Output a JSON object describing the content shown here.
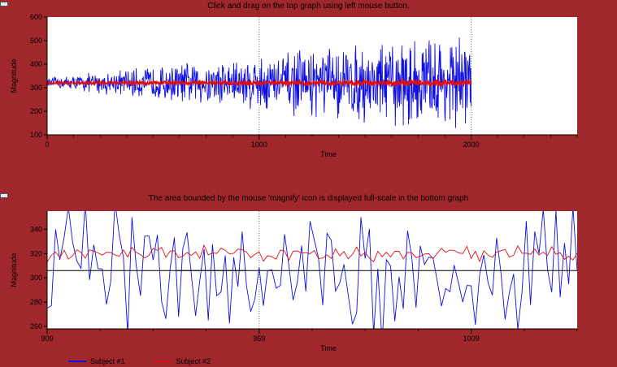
{
  "titles": {
    "top": "Click and drag on the top graph using left mouse button.",
    "bottom": "The area bounded by the mouse 'magnify' icon is displayed full-scale in the bottom graph"
  },
  "colors": {
    "background": "#a0272b",
    "subject1": "#1010e0",
    "subject2": "#e01010",
    "threshold": "#000000"
  },
  "legend": [
    {
      "name": "Subject #1",
      "color": "#1010e0"
    },
    {
      "name": "Subject #2",
      "color": "#e01010"
    }
  ],
  "chart_data": [
    {
      "type": "line",
      "xlabel": "Time",
      "ylabel": "Magnitude",
      "xlim": [
        0,
        2500
      ],
      "ylim": [
        100,
        600
      ],
      "xticks": [
        0,
        1000,
        2000
      ],
      "yticks": [
        100,
        200,
        300,
        400,
        500,
        600
      ],
      "series_range": [
        0,
        2000
      ],
      "series": [
        {
          "name": "Subject #1",
          "center": 320,
          "amplitude_start": 20,
          "amplitude_end": 200
        },
        {
          "name": "Subject #2",
          "center": 320,
          "amplitude_start": 5,
          "amplitude_end": 15
        }
      ],
      "guides_x": [
        1000,
        2000
      ],
      "threshold_y": 320,
      "legend": "bottom-left",
      "grid": false
    },
    {
      "type": "line",
      "xlabel": "Time",
      "ylabel": "Magnitude",
      "xlim": [
        909,
        1034
      ],
      "ylim": [
        258,
        355
      ],
      "xticks": [
        909,
        959,
        1009
      ],
      "yticks": [
        260,
        280,
        300,
        320,
        340
      ],
      "series": [
        {
          "name": "Subject #1",
          "center": 310,
          "amplitude": 55
        },
        {
          "name": "Subject #2",
          "center": 320,
          "amplitude": 6
        }
      ],
      "threshold_y": 306,
      "threshold_segments": [
        [
          909,
          956
        ],
        [
          939.5,
          1034
        ]
      ],
      "guides_x": [
        959
      ],
      "grid": false
    }
  ]
}
